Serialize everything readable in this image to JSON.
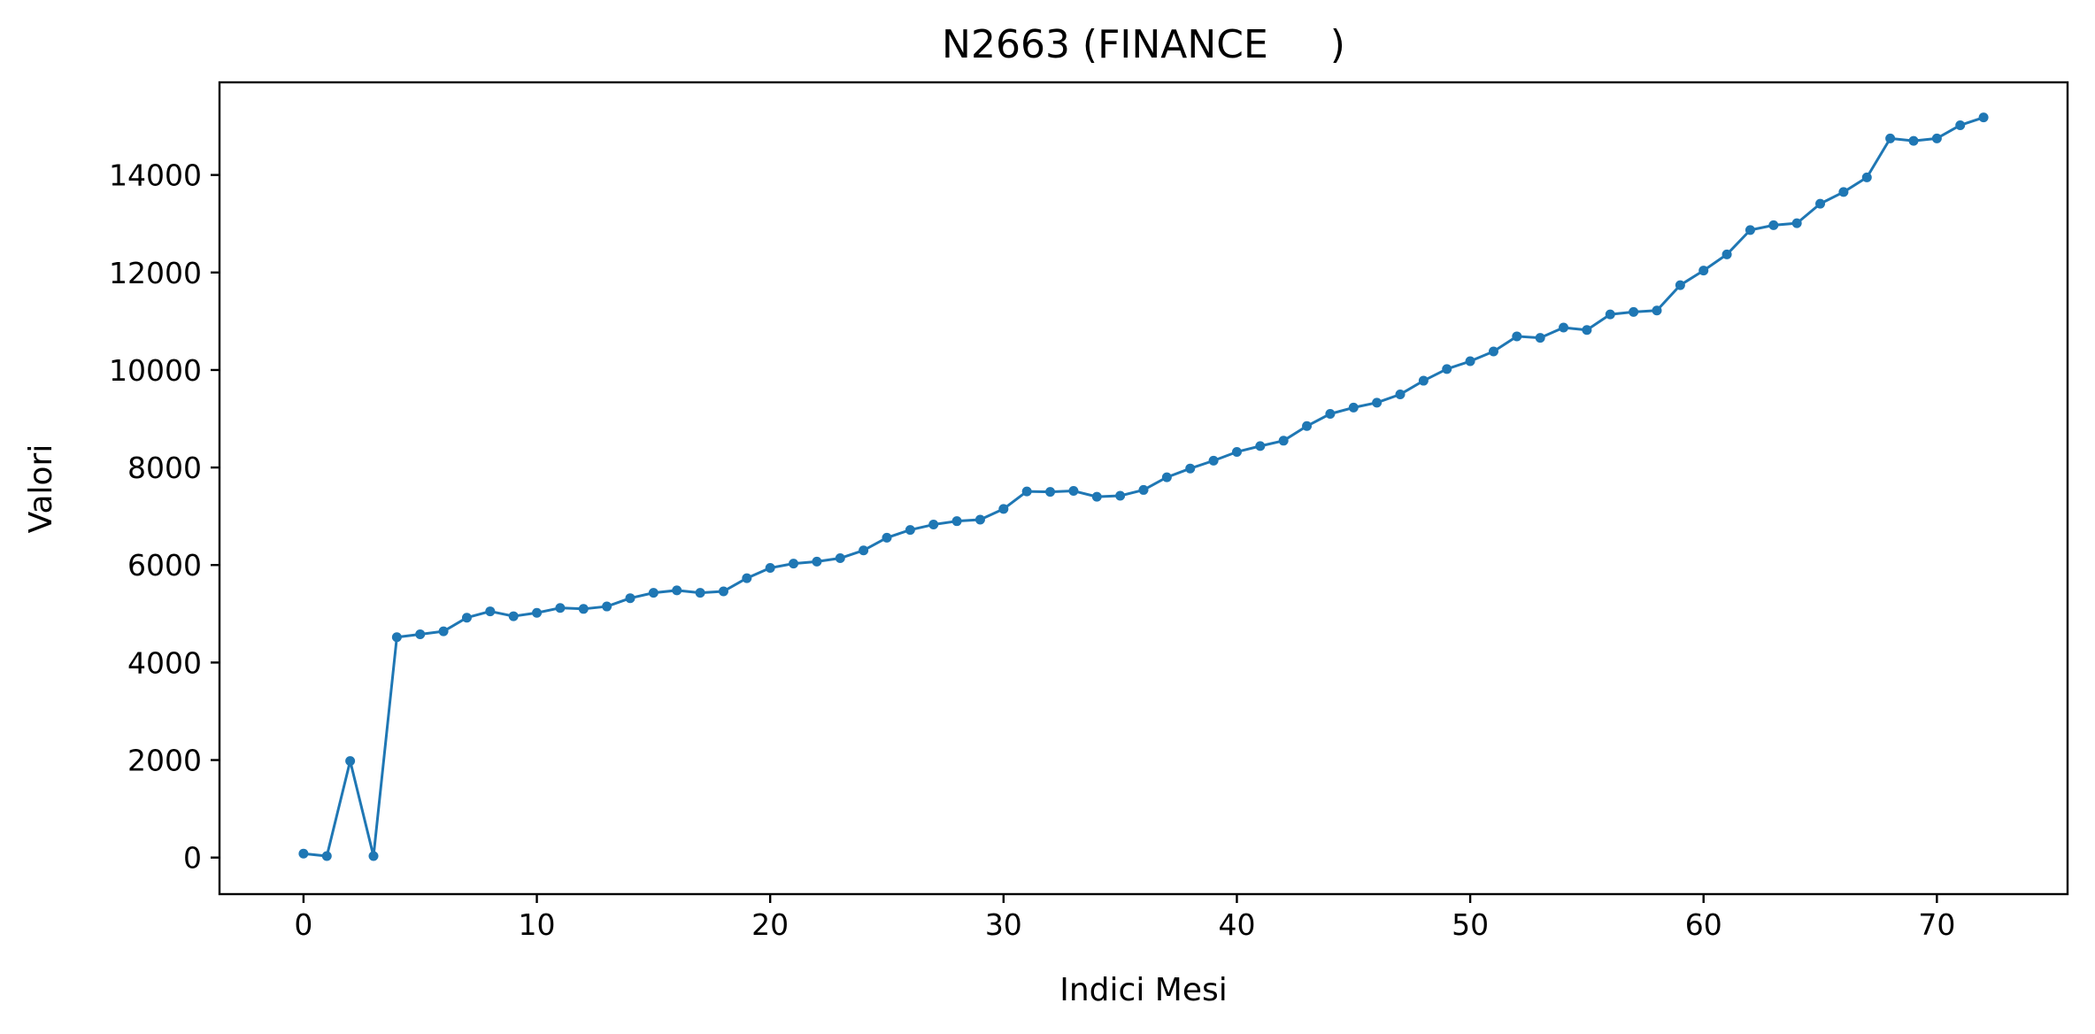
{
  "chart_data": {
    "type": "line",
    "title": "N2663 (FINANCE     )",
    "xlabel": "Indici Mesi",
    "ylabel": "Valori",
    "xlim": [
      -3.6,
      75.6
    ],
    "ylim": [
      -750,
      15900
    ],
    "xticks": [
      0,
      10,
      20,
      30,
      40,
      50,
      60,
      70
    ],
    "yticks": [
      0,
      2000,
      4000,
      6000,
      8000,
      10000,
      12000,
      14000
    ],
    "grid": false,
    "series": [
      {
        "color": "#1f77b4",
        "marker": "circle",
        "x": [
          0,
          1,
          2,
          3,
          4,
          5,
          6,
          7,
          8,
          9,
          10,
          11,
          12,
          13,
          14,
          15,
          16,
          17,
          18,
          19,
          20,
          21,
          22,
          23,
          24,
          25,
          26,
          27,
          28,
          29,
          30,
          31,
          32,
          33,
          34,
          35,
          36,
          37,
          38,
          39,
          40,
          41,
          42,
          43,
          44,
          45,
          46,
          47,
          48,
          49,
          50,
          51,
          52,
          53,
          54,
          55,
          56,
          57,
          58,
          59,
          60,
          61,
          62,
          63,
          64,
          65,
          66,
          67,
          68,
          69,
          70,
          71,
          72
        ],
        "y": [
          80,
          30,
          1980,
          30,
          4520,
          4580,
          4640,
          4920,
          5050,
          4950,
          5020,
          5120,
          5100,
          5150,
          5320,
          5430,
          5480,
          5430,
          5460,
          5730,
          5940,
          6030,
          6070,
          6140,
          6300,
          6560,
          6720,
          6830,
          6900,
          6930,
          7150,
          7510,
          7500,
          7520,
          7400,
          7420,
          7540,
          7800,
          7980,
          8140,
          8320,
          8440,
          8550,
          8850,
          9100,
          9230,
          9330,
          9500,
          9780,
          10020,
          10180,
          10380,
          10690,
          10660,
          10870,
          10820,
          11140,
          11190,
          11220,
          11740,
          12040,
          12370,
          12870,
          12970,
          13010,
          13410,
          13650,
          13950,
          14750,
          14700,
          14750,
          15020,
          15180
        ]
      }
    ]
  }
}
